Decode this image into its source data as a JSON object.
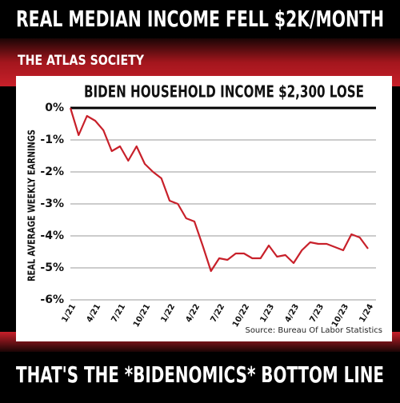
{
  "headline": "REAL MEDIAN INCOME FELL $2K/MONTH",
  "brand": "THE ATLAS SOCIETY",
  "footer": "THAT'S THE *BIDENOMICS* BOTTOM LINE",
  "chart_data": {
    "type": "line",
    "title": "BIDEN HOUSEHOLD INCOME $2,300 LOSE",
    "y_label": "REAL AVERAGE WEEKLY EARNINGS",
    "source": "Source: Bureau Of Labor Statistics",
    "categories": [
      "1/21",
      null,
      null,
      "4/21",
      null,
      null,
      "7/21",
      null,
      null,
      "10/21",
      null,
      null,
      "1/22",
      null,
      null,
      "4/22",
      null,
      null,
      "7/22",
      null,
      null,
      "10/22",
      null,
      null,
      "1/23",
      null,
      null,
      "4/23",
      null,
      null,
      "7/23",
      null,
      null,
      "10/23",
      null,
      null,
      "1/24"
    ],
    "series": [
      {
        "name": "Real average weekly earnings",
        "color": "#c8202a",
        "values": [
          0,
          -0.85,
          -0.25,
          -0.4,
          -0.7,
          -1.35,
          -1.2,
          -1.65,
          -1.2,
          -1.75,
          -2.0,
          -2.2,
          -2.9,
          -3.0,
          -3.45,
          -3.55,
          -4.3,
          -5.1,
          -4.7,
          -4.75,
          -4.55,
          -4.55,
          -4.7,
          -4.7,
          -4.3,
          -4.65,
          -4.6,
          -4.85,
          -4.45,
          -4.2,
          -4.25,
          -4.25,
          -4.35,
          -4.45,
          -3.95,
          -4.05,
          -4.4
        ]
      }
    ],
    "ylim": [
      -6,
      0
    ],
    "yticks": [
      {
        "value": -6,
        "label": "-6%"
      },
      {
        "value": -5,
        "label": "-5%"
      },
      {
        "value": -4,
        "label": "-4%"
      },
      {
        "value": -3,
        "label": "-3%"
      },
      {
        "value": -2,
        "label": "-2%"
      },
      {
        "value": -1,
        "label": "-1%"
      },
      {
        "value": 0,
        "label": "0%"
      }
    ],
    "grid": true
  }
}
